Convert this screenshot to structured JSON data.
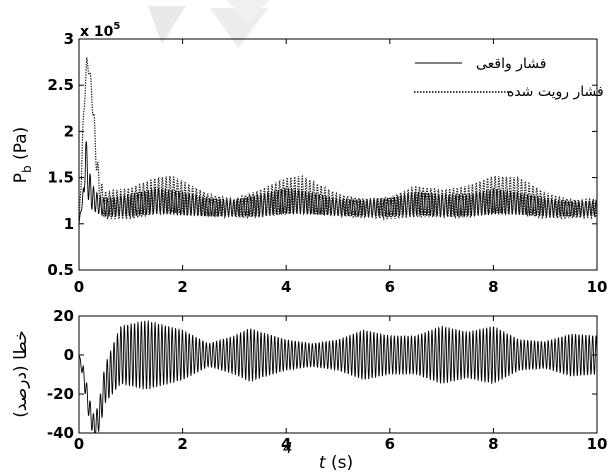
{
  "chart_data": [
    {
      "type": "line",
      "panel": "top",
      "ylabel": {
        "main": "P",
        "sub": "b",
        "unit": " (Pa)"
      },
      "y_multiplier": {
        "text": "x 10",
        "exp": "5"
      },
      "xlim": [
        0,
        10
      ],
      "ylim": [
        0.5,
        3
      ],
      "x_ticks": [
        "0",
        "2",
        "4",
        "6",
        "8",
        "10"
      ],
      "y_ticks": [
        "0.5",
        "1",
        "1.5",
        "2",
        "2.5",
        "3"
      ],
      "legend_position": "top-right",
      "series": [
        {
          "name": "فشار واقعی",
          "style": "solid",
          "x": [
            0,
            0.05,
            0.1,
            0.13,
            0.16,
            0.2,
            0.25,
            0.3,
            0.4,
            0.5,
            1,
            1.5,
            2,
            2.5,
            3,
            3.5,
            4,
            4.5,
            5,
            5.5,
            6,
            6.5,
            7,
            7.5,
            8,
            8.5,
            9,
            9.5,
            10
          ],
          "values": [
            1.0,
            1.2,
            1.35,
            1.88,
            1.5,
            1.4,
            1.3,
            1.25,
            1.2,
            1.18,
            1.2,
            1.25,
            1.22,
            1.18,
            1.17,
            1.2,
            1.25,
            1.22,
            1.18,
            1.17,
            1.18,
            1.22,
            1.2,
            1.2,
            1.24,
            1.22,
            1.18,
            1.16,
            1.17
          ],
          "osc_amplitude": [
            0.0,
            0.05,
            0.1,
            0.2,
            0.2,
            0.18,
            0.15,
            0.12,
            0.1,
            0.1,
            0.12,
            0.14,
            0.13,
            0.1,
            0.09,
            0.12,
            0.14,
            0.12,
            0.09,
            0.09,
            0.1,
            0.13,
            0.12,
            0.12,
            0.14,
            0.12,
            0.1,
            0.08,
            0.08
          ],
          "color": "#000000"
        },
        {
          "name": "فشار رویت شده",
          "style": "dotted",
          "x": [
            0,
            0.05,
            0.1,
            0.15,
            0.2,
            0.25,
            0.3,
            0.35,
            0.4,
            0.5,
            1,
            1.5,
            1.8,
            2.5,
            3,
            3.5,
            4,
            4.3,
            5,
            5.5,
            6,
            6.5,
            7,
            7.5,
            8,
            8.5,
            9,
            9.5,
            10
          ],
          "values": [
            1.0,
            1.6,
            2.3,
            2.75,
            2.65,
            2.4,
            2.0,
            1.6,
            1.35,
            1.2,
            1.22,
            1.3,
            1.32,
            1.2,
            1.17,
            1.22,
            1.3,
            1.32,
            1.2,
            1.17,
            1.17,
            1.24,
            1.22,
            1.24,
            1.32,
            1.3,
            1.2,
            1.16,
            1.17
          ],
          "osc_amplitude": [
            0.0,
            0.1,
            0.1,
            0.05,
            0.05,
            0.1,
            0.12,
            0.15,
            0.15,
            0.15,
            0.17,
            0.2,
            0.2,
            0.12,
            0.1,
            0.15,
            0.2,
            0.2,
            0.12,
            0.1,
            0.12,
            0.17,
            0.15,
            0.17,
            0.2,
            0.2,
            0.14,
            0.1,
            0.1
          ],
          "color": "#222222"
        }
      ]
    },
    {
      "type": "line",
      "panel": "bottom",
      "ylabel": "خطا (درصد)",
      "xlabel": {
        "var": "t",
        "unit": " (s)"
      },
      "xlim": [
        0,
        10
      ],
      "ylim": [
        -40,
        20
      ],
      "x_ticks": [
        "0",
        "2",
        "4",
        "6",
        "8",
        "10"
      ],
      "y_ticks": [
        "-40",
        "-20",
        "0",
        "20"
      ],
      "series": [
        {
          "style": "solid",
          "x": [
            0,
            0.1,
            0.2,
            0.3,
            0.4,
            0.5,
            0.8,
            1.3,
            2,
            2.5,
            3,
            3.3,
            3.5,
            4,
            4.5,
            5,
            5.5,
            6,
            6.5,
            7,
            7.5,
            8,
            8.5,
            9,
            9.5,
            10
          ],
          "values": [
            0,
            -12,
            -28,
            -38,
            -30,
            -15,
            0,
            0,
            0,
            0,
            0,
            0,
            0,
            0,
            0,
            0,
            0,
            0,
            0,
            0,
            0,
            0,
            0,
            0,
            0,
            0
          ],
          "osc_amplitude": [
            0,
            5,
            6,
            6,
            8,
            10,
            15,
            18,
            13,
            6,
            10,
            14,
            12,
            8,
            6,
            8,
            13,
            10,
            10,
            15,
            12,
            15,
            8,
            7,
            11,
            10
          ],
          "color": "#000000"
        }
      ]
    }
  ],
  "watermark": "4"
}
